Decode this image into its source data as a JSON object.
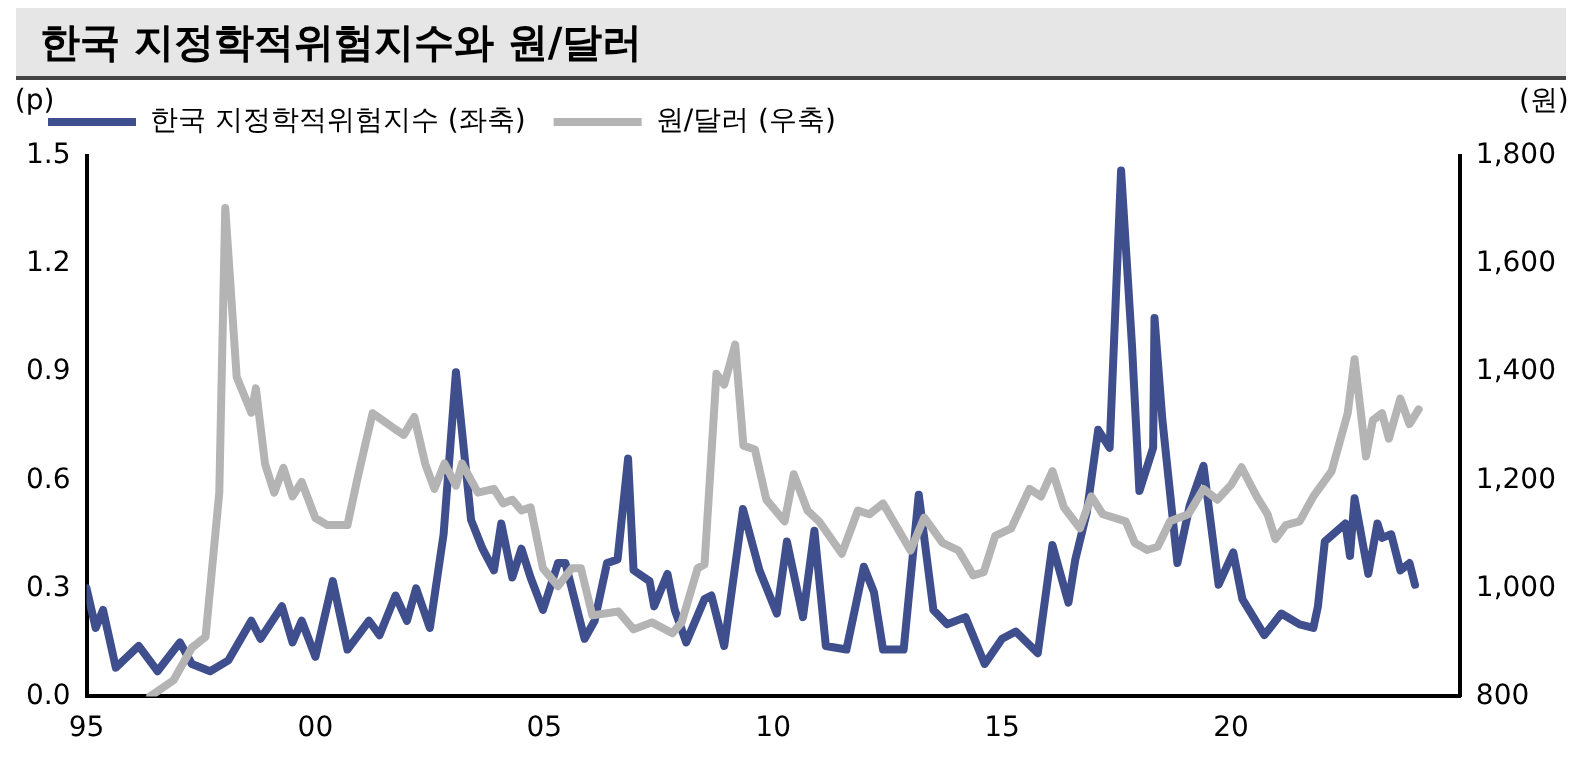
{
  "chart_data": {
    "type": "line",
    "title": "한국 지정학적위험지수와 원/달러",
    "ylabel": "(p)",
    "y2label": "(원)",
    "xlim": [
      1995,
      2025
    ],
    "xticks": [
      {
        "value": 1995,
        "label": "95"
      },
      {
        "value": 2000,
        "label": "00"
      },
      {
        "value": 2005,
        "label": "05"
      },
      {
        "value": 2010,
        "label": "10"
      },
      {
        "value": 2015,
        "label": "15"
      },
      {
        "value": 2020,
        "label": "20"
      }
    ],
    "ylim": [
      0,
      1.5
    ],
    "yticks": [
      {
        "value": 0,
        "label": "0.0"
      },
      0.3,
      0.6,
      0.9,
      1.2,
      {
        "value": 1.5,
        "label": "1.5"
      }
    ],
    "y2lim": [
      800,
      1800
    ],
    "y2ticks": [
      {
        "value": 800,
        "label": "800"
      },
      {
        "value": 1000,
        "label": "1,000"
      },
      {
        "value": 1200,
        "label": "1,200"
      },
      {
        "value": 1400,
        "label": "1,400"
      },
      {
        "value": 1600,
        "label": "1,600"
      },
      {
        "value": 1800,
        "label": "1,800"
      }
    ],
    "legend": "top",
    "marker": "none",
    "line_style": "solid",
    "series": [
      {
        "name": "한국 지정학적위험지수 (좌축)",
        "color": "#3f4e8c",
        "x": [
          1995.0,
          1995.2,
          1995.36,
          1995.64,
          1996.14,
          1996.55,
          1997.04,
          1997.3,
          1997.7,
          1998.1,
          1998.6,
          1998.8,
          1999.27,
          1999.5,
          1999.7,
          2000.0,
          2000.38,
          2000.7,
          2001.17,
          2001.4,
          2001.75,
          2002.0,
          2002.2,
          2002.5,
          2002.8,
          2003.07,
          2003.4,
          2003.65,
          2003.9,
          2004.06,
          2004.3,
          2004.5,
          2004.7,
          2004.97,
          2005.3,
          2005.46,
          2005.88,
          2006.1,
          2006.37,
          2006.6,
          2006.83,
          2006.95,
          2007.3,
          2007.4,
          2007.69,
          2007.85,
          2008.1,
          2008.5,
          2008.65,
          2008.93,
          2009.34,
          2009.7,
          2010.08,
          2010.3,
          2010.65,
          2010.9,
          2011.15,
          2011.6,
          2011.98,
          2012.2,
          2012.4,
          2012.85,
          2013.18,
          2013.5,
          2013.8,
          2014.2,
          2014.62,
          2015.0,
          2015.3,
          2015.78,
          2016.1,
          2016.45,
          2016.6,
          2016.85,
          2017.1,
          2017.35,
          2017.6,
          2017.84,
          2018.0,
          2018.3,
          2018.33,
          2018.5,
          2018.83,
          2019.1,
          2019.4,
          2019.73,
          2020.05,
          2020.25,
          2020.73,
          2021.1,
          2021.5,
          2021.8,
          2021.9,
          2022.05,
          2022.5,
          2022.6,
          2022.7,
          2023.0,
          2023.2,
          2023.3,
          2023.5,
          2023.7,
          2023.9,
          2024.02
        ],
        "values": [
          0.3,
          0.19,
          0.24,
          0.08,
          0.14,
          0.07,
          0.15,
          0.09,
          0.07,
          0.1,
          0.21,
          0.16,
          0.25,
          0.15,
          0.21,
          0.11,
          0.32,
          0.13,
          0.21,
          0.17,
          0.28,
          0.21,
          0.3,
          0.19,
          0.45,
          0.9,
          0.49,
          0.41,
          0.35,
          0.48,
          0.33,
          0.41,
          0.33,
          0.24,
          0.37,
          0.37,
          0.16,
          0.21,
          0.37,
          0.38,
          0.66,
          0.35,
          0.32,
          0.25,
          0.34,
          0.24,
          0.15,
          0.27,
          0.28,
          0.14,
          0.52,
          0.35,
          0.23,
          0.43,
          0.22,
          0.46,
          0.14,
          0.13,
          0.36,
          0.29,
          0.13,
          0.13,
          0.56,
          0.24,
          0.2,
          0.22,
          0.09,
          0.16,
          0.18,
          0.12,
          0.42,
          0.26,
          0.38,
          0.51,
          0.74,
          0.69,
          1.46,
          0.97,
          0.57,
          0.69,
          1.05,
          0.77,
          0.37,
          0.53,
          0.64,
          0.31,
          0.4,
          0.27,
          0.17,
          0.23,
          0.2,
          0.19,
          0.25,
          0.43,
          0.48,
          0.39,
          0.55,
          0.34,
          0.48,
          0.44,
          0.45,
          0.35,
          0.37,
          0.31
        ]
      },
      {
        "name": "원/달러 (우축)",
        "color": "#b4b4b4",
        "axis": "y2",
        "x": [
          1996.39,
          1996.9,
          1997.3,
          1997.6,
          1997.9,
          1998.03,
          1998.28,
          1998.6,
          1998.7,
          1998.9,
          1999.1,
          1999.3,
          1999.5,
          1999.7,
          2000.0,
          2000.26,
          2000.7,
          2000.92,
          2001.1,
          2001.25,
          2001.7,
          2001.93,
          2002.16,
          2002.4,
          2002.6,
          2002.82,
          2003.07,
          2003.2,
          2003.55,
          2003.9,
          2004.1,
          2004.3,
          2004.5,
          2004.7,
          2004.97,
          2005.3,
          2005.6,
          2005.8,
          2006.05,
          2006.62,
          2006.95,
          2007.35,
          2007.8,
          2008.0,
          2008.35,
          2008.5,
          2008.76,
          2008.93,
          2009.17,
          2009.35,
          2009.6,
          2009.85,
          2010.25,
          2010.45,
          2010.75,
          2011.0,
          2011.5,
          2011.85,
          2012.1,
          2012.4,
          2013.0,
          2013.3,
          2013.7,
          2014.05,
          2014.37,
          2014.6,
          2014.85,
          2015.2,
          2015.6,
          2015.85,
          2016.1,
          2016.35,
          2016.7,
          2016.95,
          2017.2,
          2017.7,
          2017.9,
          2018.17,
          2018.4,
          2018.67,
          2019.07,
          2019.4,
          2019.7,
          2020.0,
          2020.23,
          2020.56,
          2020.8,
          2020.97,
          2021.2,
          2021.5,
          2021.8,
          2022.2,
          2022.55,
          2022.7,
          2022.95,
          2023.1,
          2023.3,
          2023.45,
          2023.7,
          2023.9,
          2024.1
        ],
        "values": [
          800,
          830,
          890,
          910,
          1177,
          1704,
          1391,
          1325,
          1370,
          1230,
          1177,
          1223,
          1170,
          1197,
          1130,
          1117,
          1117,
          1204,
          1270,
          1324,
          1297,
          1284,
          1317,
          1230,
          1184,
          1231,
          1190,
          1231,
          1177,
          1184,
          1157,
          1164,
          1144,
          1150,
          1037,
          1004,
          1037,
          1037,
          950,
          957,
          924,
          937,
          917,
          937,
          1037,
          1044,
          1397,
          1377,
          1451,
          1264,
          1257,
          1164,
          1124,
          1211,
          1144,
          1124,
          1064,
          1144,
          1137,
          1157,
          1070,
          1131,
          1084,
          1070,
          1024,
          1030,
          1097,
          1111,
          1184,
          1170,
          1217,
          1150,
          1111,
          1170,
          1137,
          1124,
          1084,
          1071,
          1077,
          1124,
          1137,
          1184,
          1164,
          1191,
          1224,
          1170,
          1137,
          1091,
          1117,
          1124,
          1170,
          1217,
          1324,
          1424,
          1244,
          1311,
          1324,
          1277,
          1351,
          1304,
          1331
        ]
      }
    ]
  }
}
